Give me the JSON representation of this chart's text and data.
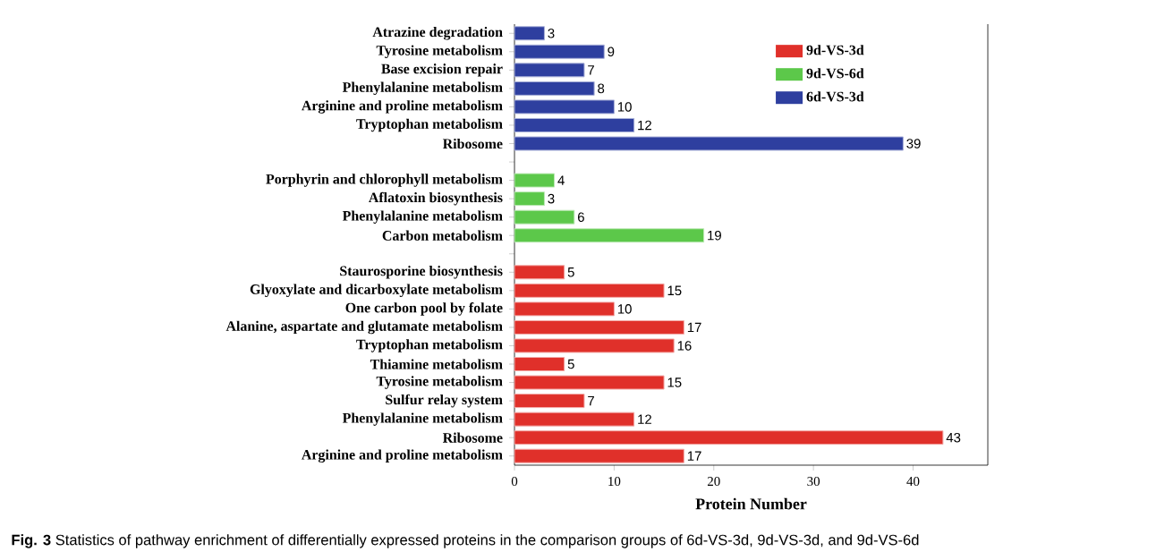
{
  "chart_data": {
    "type": "bar",
    "orientation": "horizontal",
    "xlabel": "Protein Number",
    "categories": [
      "Atrazine degradation",
      "Tyrosine metabolism",
      "Base excision repair",
      "Phenylalanine metabolism",
      "Arginine and proline metabolism",
      "Tryptophan metabolism",
      "Ribosome",
      null,
      "Porphyrin and chlorophyll metabolism",
      "Aflatoxin biosynthesis",
      "Phenylalanine metabolism",
      "Carbon metabolism",
      null,
      "Staurosporine biosynthesis",
      "Glyoxylate and dicarboxylate metabolism",
      "One carbon pool by folate",
      "Alanine, aspartate and glutamate metabolism",
      "Tryptophan metabolism",
      "Thiamine metabolism",
      "Tyrosine metabolism",
      "Sulfur relay system",
      "Phenylalanine metabolism",
      "Ribosome",
      "Arginine and proline metabolism"
    ],
    "series": [
      {
        "name": "9d-VS-3d",
        "color": "#e0302a",
        "values": [
          null,
          null,
          null,
          null,
          null,
          null,
          null,
          null,
          null,
          null,
          null,
          null,
          null,
          5,
          15,
          10,
          17,
          16,
          5,
          15,
          7,
          12,
          43,
          17
        ]
      },
      {
        "name": "9d-VS-6d",
        "color": "#5cc84a",
        "values": [
          null,
          null,
          null,
          null,
          null,
          null,
          null,
          null,
          4,
          3,
          6,
          19,
          null,
          null,
          null,
          null,
          null,
          null,
          null,
          null,
          null,
          null,
          null,
          null
        ]
      },
      {
        "name": "6d-VS-3d",
        "color": "#2e3f9f",
        "values": [
          3,
          9,
          7,
          8,
          10,
          12,
          39,
          null,
          null,
          null,
          null,
          null,
          null,
          null,
          null,
          null,
          null,
          null,
          null,
          null,
          null,
          null,
          null,
          null
        ]
      }
    ],
    "xlim": [
      0,
      47.5
    ],
    "xticks": [
      0,
      10,
      20,
      30,
      40
    ],
    "data_labels": true,
    "legend": "top right",
    "annotations": [
      "**Fig. 3** Statistics of pathway enrichment of differentially expressed proteins in the comparison groups of 6d-VS-3d, 9d-VS-3d, and 9d-VS-6d"
    ]
  }
}
